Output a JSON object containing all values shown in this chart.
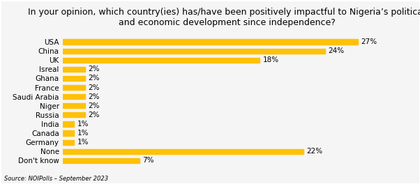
{
  "title": "In your opinion, which country(ies) has/have been positively impactful to Nigeria’s political\nand economic development since independence?",
  "categories": [
    "Don't know",
    "None",
    "Germany",
    "Canada",
    "India",
    "Russia",
    "Niger",
    "Saudi Arabia",
    "France",
    "Ghana",
    "Isreal",
    "UK",
    "China",
    "USA"
  ],
  "values": [
    7,
    22,
    1,
    1,
    1,
    2,
    2,
    2,
    2,
    2,
    2,
    18,
    24,
    27
  ],
  "bar_color": "#FFC107",
  "background_color": "#F5F5F5",
  "title_fontsize": 9,
  "label_fontsize": 7.5,
  "source_text": "Source: NOIPolls – September 2023",
  "xlim": [
    0,
    30
  ]
}
